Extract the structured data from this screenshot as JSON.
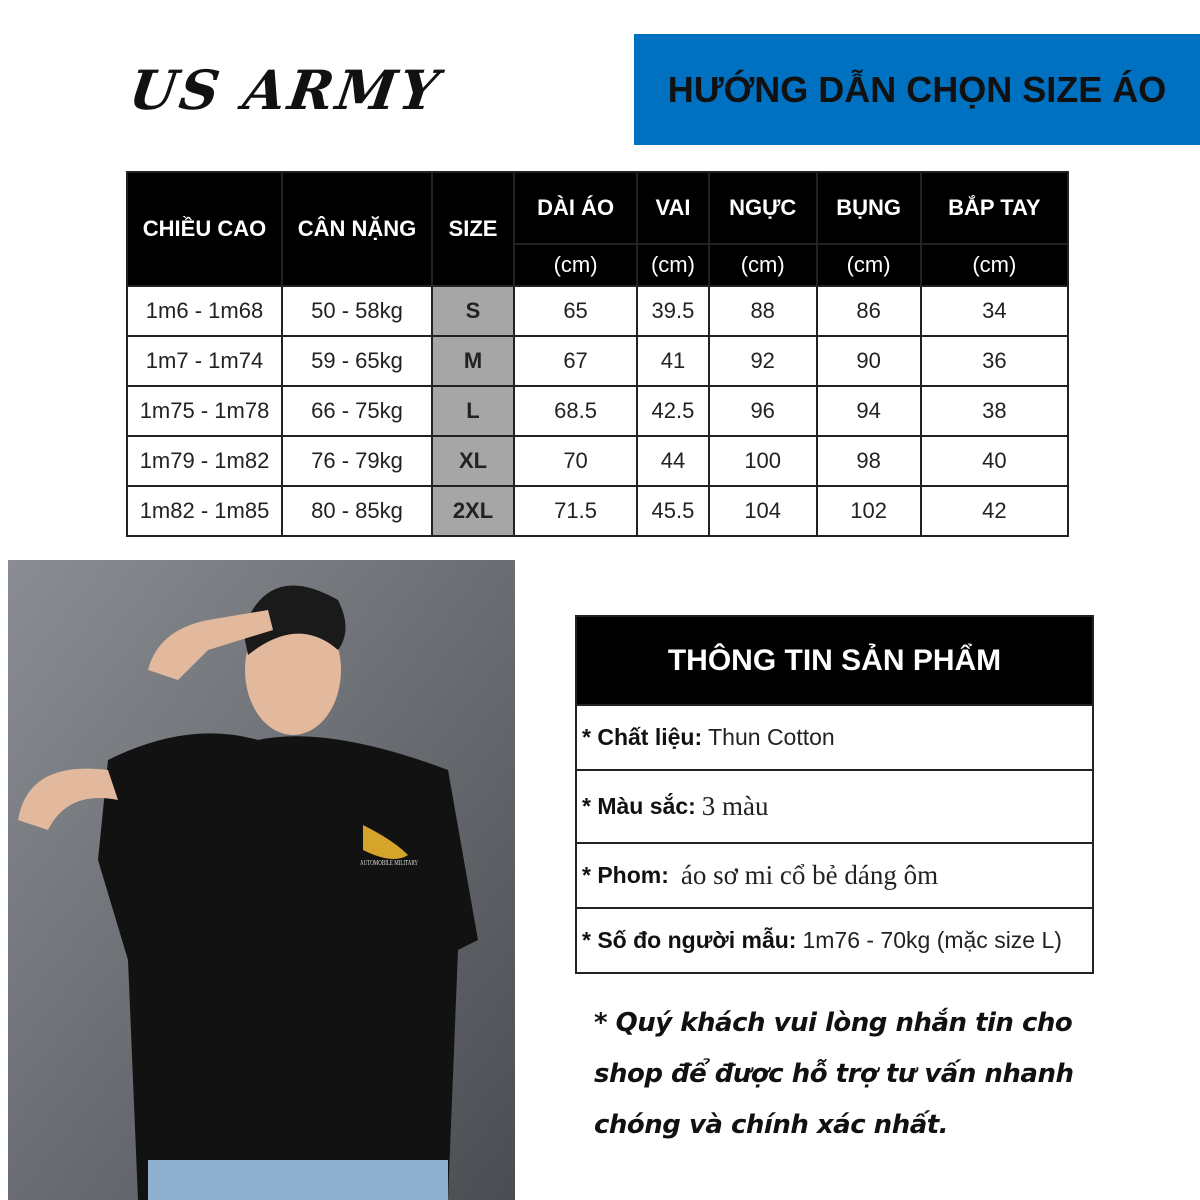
{
  "brand": "US ARMY",
  "banner_title": "HƯỚNG DẪN CHỌN SIZE ÁO",
  "colors": {
    "banner": "#0070c0",
    "header_bg": "#000000",
    "size_cell_bg": "#a6a6a6"
  },
  "size_table": {
    "headers": [
      "CHIỀU CAO",
      "CÂN NẶNG",
      "SIZE",
      "DÀI ÁO",
      "VAI",
      "NGỰC",
      "BỤNG",
      "BẮP TAY"
    ],
    "unit": "(cm)",
    "rows": [
      [
        "1m6 - 1m68",
        "50 - 58kg",
        "S",
        "65",
        "39.5",
        "88",
        "86",
        "34"
      ],
      [
        "1m7 - 1m74",
        "59 - 65kg",
        "M",
        "67",
        "41",
        "92",
        "90",
        "36"
      ],
      [
        "1m75 - 1m78",
        "66 - 75kg",
        "L",
        "68.5",
        "42.5",
        "96",
        "94",
        "38"
      ],
      [
        "1m79 - 1m82",
        "76 - 79kg",
        "XL",
        "70",
        "44",
        "100",
        "98",
        "40"
      ],
      [
        "1m82 - 1m85",
        "80 - 85kg",
        "2XL",
        "71.5",
        "45.5",
        "104",
        "102",
        "42"
      ]
    ]
  },
  "product_info": {
    "title": "THÔNG TIN SẢN PHẨM",
    "rows": [
      {
        "label": "* Chất liệu:",
        "value": "Thun Cotton"
      },
      {
        "label": "* Màu sắc:",
        "value": "3 màu"
      },
      {
        "label": "* Phom:",
        "value": "áo sơ mi cổ bẻ dáng ôm"
      },
      {
        "label": "* Số đo người mẫu:",
        "value": "1m76 - 70kg (mặc size L)"
      }
    ]
  },
  "note": "* Quý khách vui lòng nhắn tin cho shop để được hỗ trợ tư vấn nhanh chóng và chính xác nhất.",
  "photo_logo_text": "AUTOMOBILE MILITARY"
}
